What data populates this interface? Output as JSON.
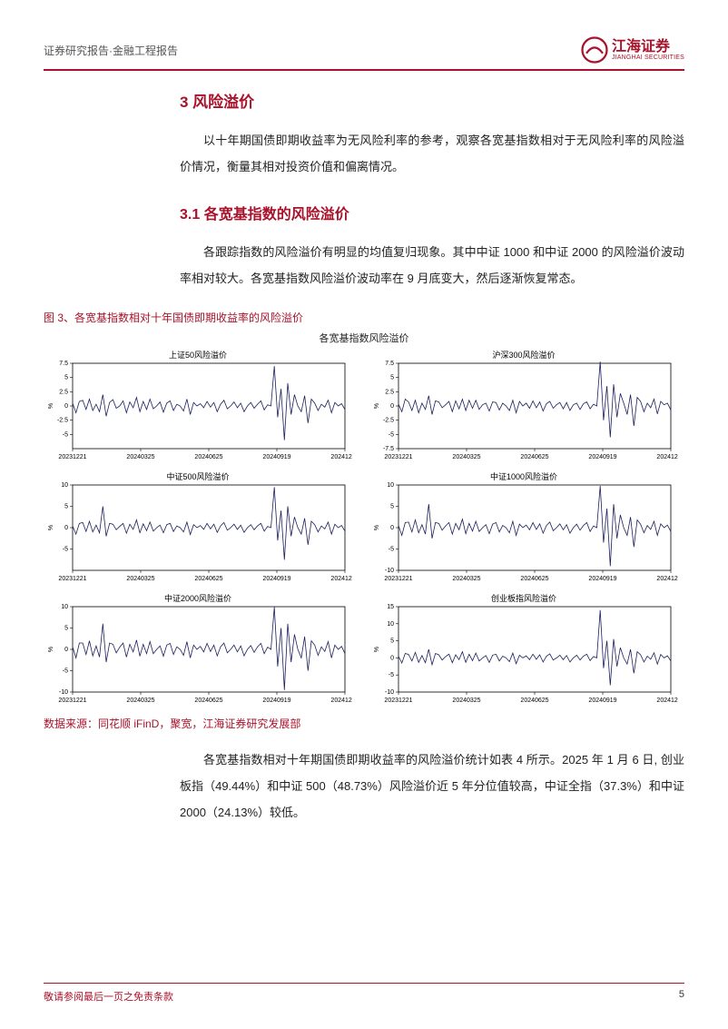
{
  "header": {
    "left": "证券研究报告·金融工程报告",
    "logo_main": "江海证券",
    "logo_sub": "JIANGHAI SECURITIES"
  },
  "section3": {
    "title": "3 风险溢价",
    "para1": "以十年期国债即期收益率为无风险利率的参考，观察各宽基指数相对于无风险利率的风险溢价情况，衡量其相对投资价值和偏离情况。"
  },
  "section31": {
    "title": "3.1 各宽基指数的风险溢价",
    "para1": "各跟踪指数的风险溢价有明显的均值复归现象。其中中证 1000 和中证 2000 的风险溢价波动率相对较大。各宽基指数风险溢价波动率在 9 月底变大，然后逐渐恢复常态。"
  },
  "figure3": {
    "caption": "图 3、各宽基指数相对十年国债即期收益率的风险溢价",
    "main_title": "各宽基指数风险溢价",
    "source": "数据来源：同花顺 iFinD，聚宽，江海证券研究发展部",
    "chart_style": {
      "line_color": "#1a1f5c",
      "border_color": "#000000",
      "grid_color": "#e8e8e8",
      "title_fontsize": 9,
      "tick_fontsize": 7,
      "ylabel": "%",
      "line_width": 0.8,
      "bg": "#ffffff"
    },
    "x_ticks": [
      "20231221",
      "20240325",
      "20240625",
      "20240919",
      "20241219"
    ],
    "charts": [
      {
        "title": "上证50风险溢价",
        "ylim": [
          -7.5,
          7.5
        ],
        "yticks": [
          -5,
          -2.5,
          0,
          2.5,
          5,
          7.5
        ],
        "data": [
          0.5,
          -1.2,
          0.8,
          1.0,
          -0.6,
          1.2,
          -0.8,
          0.3,
          -1.0,
          2.0,
          -1.8,
          0.6,
          1.1,
          -0.4,
          0.0,
          0.9,
          -1.2,
          0.7,
          -0.3,
          1.5,
          -1.0,
          0.8,
          -0.6,
          1.2,
          -0.5,
          0.0,
          0.7,
          -1.1,
          0.5,
          0.9,
          -0.8,
          0.3,
          0.0,
          -0.9,
          1.2,
          -1.5,
          0.6,
          0.0,
          0.4,
          -0.3,
          0.8,
          -0.2,
          0.6,
          -1.0,
          0.3,
          1.0,
          -0.5,
          0.0,
          0.7,
          -0.3,
          0.5,
          -1.0,
          0.0,
          0.6,
          -0.4,
          0.3,
          0.9,
          -0.7,
          0.2,
          0.0,
          7.0,
          -2.0,
          3.0,
          -6.0,
          4.0,
          -1.5,
          2.0,
          0.0,
          -1.0,
          1.8,
          -3.0,
          1.2,
          0.5,
          -0.8,
          0.3,
          -0.2,
          1.0,
          -1.2,
          0.6,
          0.0,
          0.4,
          -0.6
        ]
      },
      {
        "title": "沪深300风险溢价",
        "ylim": [
          -7.5,
          7.5
        ],
        "yticks": [
          -7.5,
          -5,
          -2.5,
          0,
          2.5,
          5,
          7.5
        ],
        "data": [
          0.3,
          -1.0,
          1.2,
          0.7,
          -0.8,
          1.0,
          -1.2,
          0.5,
          -0.6,
          1.8,
          -1.5,
          0.9,
          0.7,
          -0.3,
          0.2,
          0.8,
          -1.0,
          0.9,
          -0.5,
          1.2,
          -0.8,
          1.0,
          -0.4,
          1.0,
          -0.6,
          0.2,
          0.5,
          -0.9,
          0.7,
          0.6,
          -0.7,
          0.5,
          0.0,
          -0.8,
          1.0,
          -1.2,
          0.8,
          0.0,
          0.5,
          -0.4,
          0.9,
          -0.3,
          0.7,
          -0.9,
          0.4,
          0.8,
          -0.4,
          0.2,
          0.6,
          -0.5,
          0.6,
          -0.8,
          0.2,
          0.5,
          -0.6,
          0.4,
          0.7,
          -0.5,
          0.3,
          0.0,
          7.8,
          -2.5,
          3.5,
          -5.5,
          3.8,
          -2.0,
          2.2,
          0.5,
          -1.5,
          2.0,
          -3.5,
          1.5,
          0.8,
          -1.0,
          0.5,
          -0.3,
          1.2,
          -1.4,
          0.8,
          0.2,
          0.5,
          -0.7
        ]
      },
      {
        "title": "中证500风险溢价",
        "ylim": [
          -10,
          10
        ],
        "yticks": [
          -5,
          0,
          5,
          10
        ],
        "data": [
          0.4,
          -1.5,
          1.0,
          1.2,
          -0.9,
          1.5,
          -1.0,
          0.6,
          -1.2,
          5.0,
          -2.0,
          1.0,
          0.8,
          -0.5,
          0.3,
          1.0,
          -1.3,
          0.8,
          -0.4,
          1.8,
          -1.2,
          0.9,
          -0.7,
          1.3,
          -0.8,
          0.0,
          0.6,
          -1.2,
          0.7,
          1.0,
          -0.9,
          0.4,
          0.0,
          -1.0,
          1.3,
          -1.6,
          0.7,
          0.0,
          0.5,
          -0.4,
          1.0,
          -0.3,
          0.8,
          -1.1,
          0.4,
          1.2,
          -0.6,
          0.0,
          0.8,
          -0.4,
          0.6,
          -1.1,
          0.0,
          0.7,
          -0.5,
          0.4,
          1.0,
          -0.8,
          0.3,
          0.0,
          9.5,
          -3.0,
          4.0,
          -7.5,
          5.0,
          -2.0,
          2.5,
          0.0,
          -1.5,
          2.2,
          -4.0,
          1.5,
          0.7,
          -1.0,
          0.4,
          -0.3,
          1.3,
          -1.5,
          0.8,
          0.0,
          0.5,
          -0.8
        ]
      },
      {
        "title": "中证1000风险溢价",
        "ylim": [
          -10,
          10
        ],
        "yticks": [
          -10,
          -5,
          0,
          5,
          10
        ],
        "data": [
          0.5,
          -1.8,
          1.2,
          1.3,
          -1.0,
          1.8,
          -1.2,
          0.7,
          -1.5,
          5.5,
          -2.5,
          1.2,
          1.0,
          -0.6,
          0.4,
          1.2,
          -1.5,
          1.0,
          -0.5,
          2.0,
          -1.4,
          1.0,
          -0.8,
          1.5,
          -0.9,
          0.0,
          0.7,
          -1.4,
          0.8,
          1.2,
          -1.0,
          0.5,
          0.0,
          -1.2,
          1.5,
          -1.8,
          0.8,
          0.0,
          0.6,
          -0.5,
          1.2,
          -0.4,
          0.9,
          -1.3,
          0.5,
          1.3,
          -0.7,
          0.0,
          0.9,
          -0.5,
          0.7,
          -1.3,
          0.0,
          0.8,
          -0.6,
          0.5,
          1.2,
          -0.9,
          0.4,
          0.0,
          9.8,
          -3.5,
          4.5,
          -9.0,
          5.5,
          -2.5,
          3.0,
          0.0,
          -1.8,
          2.5,
          -4.5,
          1.8,
          0.8,
          -1.2,
          0.5,
          -0.4,
          1.5,
          -1.8,
          0.9,
          0.0,
          0.6,
          -0.9
        ]
      },
      {
        "title": "中证2000风险溢价",
        "ylim": [
          -10,
          10
        ],
        "yticks": [
          -10,
          -5,
          0,
          5,
          10
        ],
        "data": [
          0.6,
          -2.0,
          1.5,
          1.5,
          -1.2,
          2.0,
          -1.5,
          0.8,
          -1.8,
          6.0,
          -3.0,
          1.5,
          1.2,
          -0.8,
          0.5,
          1.5,
          -1.8,
          1.2,
          -0.6,
          2.2,
          -1.6,
          1.2,
          -1.0,
          1.8,
          -1.0,
          0.0,
          0.8,
          -1.6,
          1.0,
          1.4,
          -1.2,
          0.6,
          0.0,
          -1.4,
          1.8,
          -2.0,
          1.0,
          0.0,
          0.7,
          -0.6,
          1.4,
          -0.5,
          1.0,
          -1.5,
          0.6,
          1.5,
          -0.8,
          0.0,
          1.0,
          -0.6,
          0.8,
          -1.5,
          0.0,
          0.9,
          -0.7,
          0.6,
          1.4,
          -1.0,
          0.5,
          0.0,
          9.9,
          -4.0,
          5.0,
          -9.5,
          6.0,
          -3.0,
          3.5,
          0.0,
          -2.0,
          3.0,
          -5.0,
          2.0,
          1.0,
          -1.4,
          0.6,
          -0.5,
          1.8,
          -2.0,
          1.0,
          0.0,
          0.7,
          -1.0
        ]
      },
      {
        "title": "创业板指风险溢价",
        "ylim": [
          -10,
          15
        ],
        "yticks": [
          -10,
          -5,
          0,
          5,
          10,
          15
        ],
        "data": [
          0.5,
          -1.5,
          1.3,
          1.0,
          -0.9,
          1.6,
          -1.3,
          0.7,
          -1.4,
          2.5,
          -2.0,
          1.3,
          0.9,
          -0.6,
          0.4,
          1.1,
          -1.4,
          0.9,
          -0.5,
          1.8,
          -1.3,
          1.1,
          -0.8,
          1.4,
          -0.9,
          0.0,
          0.7,
          -1.3,
          0.8,
          1.1,
          -0.9,
          0.5,
          0.0,
          -1.1,
          1.4,
          -1.7,
          0.8,
          0.0,
          0.6,
          -0.5,
          1.1,
          -0.4,
          0.9,
          -1.2,
          0.5,
          1.2,
          -0.6,
          0.0,
          0.8,
          -0.5,
          0.7,
          -1.2,
          0.0,
          0.8,
          -0.6,
          0.5,
          1.1,
          -0.8,
          0.4,
          0.0,
          14.0,
          -3.0,
          5.0,
          -8.0,
          5.5,
          -2.5,
          3.0,
          0.0,
          -1.8,
          2.5,
          -4.5,
          1.8,
          0.9,
          -1.2,
          0.5,
          -0.4,
          1.5,
          -1.8,
          1.0,
          0.0,
          0.6,
          -0.9
        ]
      }
    ]
  },
  "after_figure": {
    "para": "各宽基指数相对十年期国债即期收益率的风险溢价统计如表 4 所示。2025 年 1 月 6 日, 创业板指（49.44%）和中证 500（48.73%）风险溢价近 5 年分位值较高，中证全指（37.3%）和中证 2000（24.13%）较低。"
  },
  "footer": {
    "left": "敬请参阅最后一页之免责条款",
    "page": "5"
  }
}
